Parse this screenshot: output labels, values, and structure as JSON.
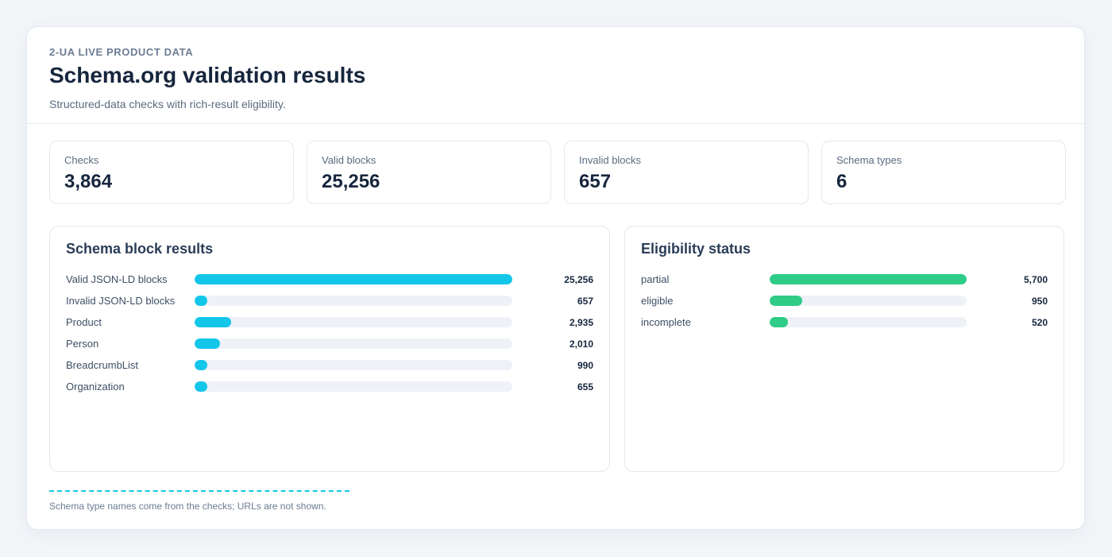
{
  "header": {
    "eyebrow": "2-UA LIVE PRODUCT DATA",
    "title": "Schema.org validation results",
    "subtitle": "Structured-data checks with rich-result eligibility."
  },
  "stats": [
    {
      "label": "Checks",
      "value": "3,864"
    },
    {
      "label": "Valid blocks",
      "value": "25,256"
    },
    {
      "label": "Invalid blocks",
      "value": "657"
    },
    {
      "label": "Schema types",
      "value": "6"
    }
  ],
  "colors": {
    "accent_cyan": "#12c6ea",
    "accent_green": "#2ecc87",
    "track": "#eef2f7"
  },
  "schema_panel": {
    "title": "Schema block results",
    "rows": [
      {
        "label": "Valid JSON-LD blocks",
        "value": 25256,
        "display": "25,256"
      },
      {
        "label": "Invalid JSON-LD blocks",
        "value": 657,
        "display": "657"
      },
      {
        "label": "Product",
        "value": 2935,
        "display": "2,935"
      },
      {
        "label": "Person",
        "value": 2010,
        "display": "2,010"
      },
      {
        "label": "BreadcrumbList",
        "value": 990,
        "display": "990"
      },
      {
        "label": "Organization",
        "value": 655,
        "display": "655"
      }
    ]
  },
  "eligibility_panel": {
    "title": "Eligibility status",
    "rows": [
      {
        "label": "partial",
        "value": 5700,
        "display": "5,700"
      },
      {
        "label": "eligible",
        "value": 950,
        "display": "950"
      },
      {
        "label": "incomplete",
        "value": 520,
        "display": "520"
      }
    ]
  },
  "footnote": "Schema type names come from the checks; URLs are not shown."
}
